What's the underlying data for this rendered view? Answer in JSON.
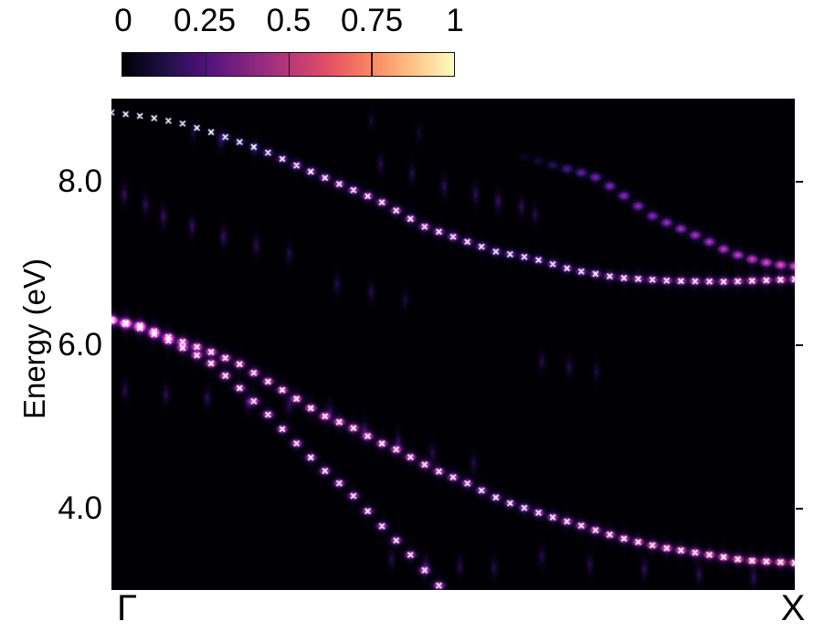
{
  "colorbar": {
    "tick_labels": [
      "0",
      "0.25",
      "0.5",
      "0.75",
      "1"
    ],
    "colormap_name": "magma",
    "range": [
      0,
      1
    ],
    "stops": [
      [
        0.0,
        "#000004"
      ],
      [
        0.125,
        "#1c1044"
      ],
      [
        0.25,
        "#4f127b"
      ],
      [
        0.375,
        "#812581"
      ],
      [
        0.5,
        "#b5367a"
      ],
      [
        0.625,
        "#e55064"
      ],
      [
        0.75,
        "#fb8761"
      ],
      [
        0.875,
        "#fec287"
      ],
      [
        1.0,
        "#fcfdbf"
      ]
    ]
  },
  "axes": {
    "ylabel": "Energy (eV)",
    "y_ticks": [
      {
        "label": "8.0",
        "energy": 8.0
      },
      {
        "label": "6.0",
        "energy": 6.0
      },
      {
        "label": "4.0",
        "energy": 4.0
      }
    ],
    "x_ticks": [
      {
        "label": "Γ",
        "k": 0.0
      },
      {
        "label": "X",
        "k": 1.0
      }
    ],
    "energy_range": [
      3.0,
      9.0
    ]
  },
  "chart_data": {
    "type": "heatmap",
    "title": "",
    "xlabel": "",
    "ylabel": "Energy (eV)",
    "x_path_labels": [
      "Γ",
      "X"
    ],
    "ylim": [
      3.0,
      9.0
    ],
    "colorbar_range": [
      0,
      1
    ],
    "marker_color": "#ffffff",
    "n_k_samples": 49,
    "bands": [
      {
        "name": "upper-band",
        "markers": true,
        "k_min": 0.0,
        "k_max": 1.0,
        "anchors": [
          [
            0.0,
            8.85,
            0.02
          ],
          [
            0.05,
            8.8,
            0.02
          ],
          [
            0.102,
            8.72,
            0.03
          ],
          [
            0.15,
            8.6,
            0.06
          ],
          [
            0.17,
            8.54,
            0.2
          ],
          [
            0.205,
            8.44,
            0.14
          ],
          [
            0.235,
            8.34,
            0.26
          ],
          [
            0.269,
            8.21,
            0.36
          ],
          [
            0.332,
            7.98,
            0.42
          ],
          [
            0.394,
            7.76,
            0.45
          ],
          [
            0.456,
            7.46,
            0.44
          ],
          [
            0.5,
            7.33,
            0.4
          ],
          [
            0.562,
            7.15,
            0.33
          ],
          [
            0.619,
            7.06,
            0.31
          ],
          [
            0.677,
            6.92,
            0.36
          ],
          [
            0.741,
            6.83,
            0.42
          ],
          [
            0.821,
            6.79,
            0.47
          ],
          [
            0.9,
            6.78,
            0.52
          ],
          [
            1.0,
            6.81,
            0.62
          ]
        ]
      },
      {
        "name": "folded-upper-band",
        "markers": false,
        "k_min": 0.6,
        "k_max": 1.0,
        "anchors": [
          [
            0.6,
            8.32,
            0.03
          ],
          [
            0.64,
            8.22,
            0.1
          ],
          [
            0.672,
            8.15,
            0.22
          ],
          [
            0.706,
            8.07,
            0.3
          ],
          [
            0.735,
            7.92,
            0.33
          ],
          [
            0.765,
            7.74,
            0.35
          ],
          [
            0.794,
            7.57,
            0.33
          ],
          [
            0.822,
            7.47,
            0.38
          ],
          [
            0.854,
            7.35,
            0.4
          ],
          [
            0.882,
            7.24,
            0.42
          ],
          [
            0.907,
            7.13,
            0.45
          ],
          [
            0.944,
            7.04,
            0.48
          ],
          [
            0.973,
            6.99,
            0.52
          ],
          [
            1.0,
            6.97,
            0.55
          ]
        ]
      },
      {
        "name": "lower-band-gentle",
        "markers": true,
        "k_min": 0.0,
        "k_max": 1.0,
        "anchors": [
          [
            0.0,
            6.31,
            0.7
          ],
          [
            0.04,
            6.25,
            0.68
          ],
          [
            0.081,
            6.11,
            0.64
          ],
          [
            0.123,
            5.99,
            0.62
          ],
          [
            0.146,
            5.92,
            0.6
          ],
          [
            0.186,
            5.78,
            0.56
          ],
          [
            0.225,
            5.58,
            0.54
          ],
          [
            0.265,
            5.38,
            0.58
          ],
          [
            0.305,
            5.16,
            0.62
          ],
          [
            0.352,
            5.0,
            0.6
          ],
          [
            0.39,
            4.82,
            0.56
          ],
          [
            0.414,
            4.74,
            0.55
          ],
          [
            0.445,
            4.6,
            0.52
          ],
          [
            0.473,
            4.48,
            0.5
          ],
          [
            0.517,
            4.33,
            0.45
          ],
          [
            0.56,
            4.15,
            0.4
          ],
          [
            0.58,
            4.08,
            0.38
          ],
          [
            0.641,
            3.91,
            0.45
          ],
          [
            0.682,
            3.81,
            0.5
          ],
          [
            0.743,
            3.65,
            0.55
          ],
          [
            0.805,
            3.53,
            0.6
          ],
          [
            0.867,
            3.45,
            0.62
          ],
          [
            0.928,
            3.37,
            0.66
          ],
          [
            1.0,
            3.34,
            0.72
          ]
        ]
      },
      {
        "name": "lower-band-steep",
        "markers": true,
        "k_min": 0.0,
        "k_max": 0.492,
        "anchors": [
          [
            0.0,
            6.31,
            0.68
          ],
          [
            0.04,
            6.22,
            0.64
          ],
          [
            0.081,
            6.07,
            0.6
          ],
          [
            0.123,
            5.89,
            0.57
          ],
          [
            0.146,
            5.78,
            0.56
          ],
          [
            0.186,
            5.49,
            0.53
          ],
          [
            0.225,
            5.19,
            0.5
          ],
          [
            0.265,
            4.85,
            0.48
          ],
          [
            0.305,
            4.52,
            0.47
          ],
          [
            0.352,
            4.18,
            0.45
          ],
          [
            0.391,
            3.83,
            0.42
          ],
          [
            0.434,
            3.47,
            0.45
          ],
          [
            0.475,
            3.1,
            0.5
          ],
          [
            0.492,
            2.95,
            0.45
          ]
        ]
      }
    ],
    "ghost_columns": [
      [
        0.019,
        7.85,
        0.07
      ],
      [
        0.05,
        7.72,
        0.06
      ],
      [
        0.076,
        7.58,
        0.07
      ],
      [
        0.118,
        7.46,
        0.07
      ],
      [
        0.164,
        7.33,
        0.07
      ],
      [
        0.212,
        7.22,
        0.06
      ],
      [
        0.26,
        7.12,
        0.05
      ],
      [
        0.12,
        8.6,
        0.04
      ],
      [
        0.16,
        8.5,
        0.05
      ],
      [
        0.21,
        8.4,
        0.04
      ],
      [
        0.38,
        8.75,
        0.03
      ],
      [
        0.45,
        8.6,
        0.03
      ],
      [
        0.394,
        8.22,
        0.05
      ],
      [
        0.44,
        8.1,
        0.05
      ],
      [
        0.487,
        7.95,
        0.06
      ],
      [
        0.533,
        7.85,
        0.06
      ],
      [
        0.566,
        7.76,
        0.07
      ],
      [
        0.6,
        7.7,
        0.06
      ],
      [
        0.62,
        7.6,
        0.05
      ],
      [
        0.33,
        6.75,
        0.05
      ],
      [
        0.38,
        6.65,
        0.05
      ],
      [
        0.43,
        6.55,
        0.04
      ],
      [
        0.02,
        5.45,
        0.05
      ],
      [
        0.08,
        5.4,
        0.06
      ],
      [
        0.14,
        5.36,
        0.06
      ],
      [
        0.2,
        5.3,
        0.06
      ],
      [
        0.26,
        5.26,
        0.06
      ],
      [
        0.32,
        5.2,
        0.05
      ],
      [
        0.37,
        4.97,
        0.06
      ],
      [
        0.42,
        4.82,
        0.06
      ],
      [
        0.47,
        4.68,
        0.05
      ],
      [
        0.53,
        4.56,
        0.05
      ],
      [
        0.63,
        5.8,
        0.05
      ],
      [
        0.67,
        5.74,
        0.05
      ],
      [
        0.71,
        5.68,
        0.04
      ],
      [
        0.41,
        3.38,
        0.05
      ],
      [
        0.46,
        3.32,
        0.05
      ],
      [
        0.51,
        3.3,
        0.05
      ],
      [
        0.56,
        3.28,
        0.05
      ],
      [
        0.63,
        3.42,
        0.05
      ],
      [
        0.7,
        3.32,
        0.05
      ],
      [
        0.78,
        3.26,
        0.06
      ],
      [
        0.86,
        3.2,
        0.06
      ],
      [
        0.94,
        3.15,
        0.06
      ]
    ]
  }
}
